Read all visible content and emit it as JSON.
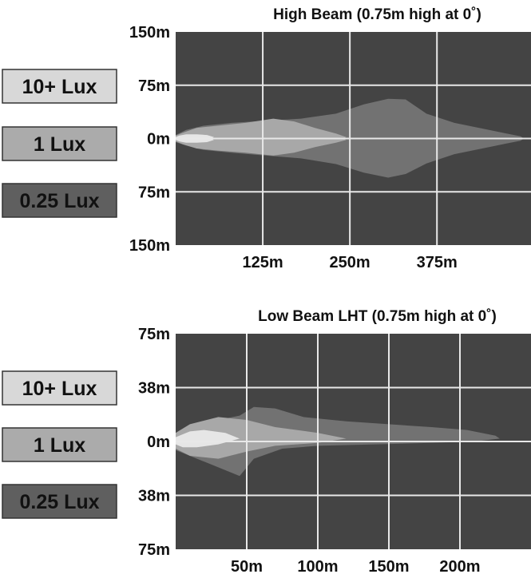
{
  "chart_data": [
    {
      "type": "area",
      "title": "High Beam (0.75m high at 0˚)",
      "xlabel": "",
      "ylabel": "",
      "x_ticks": [
        "125m",
        "250m",
        "375m"
      ],
      "x_tick_values": [
        125,
        250,
        375
      ],
      "y_ticks": [
        "150m",
        "75m",
        "0m",
        "75m",
        "150m"
      ],
      "xlim": [
        0,
        510
      ],
      "ylim": [
        -150,
        150
      ],
      "grid": true,
      "background_color": "#444444",
      "grid_color": "#e8e8e8",
      "legend_position": "left",
      "legend": [
        {
          "label": "10+ Lux",
          "color": "#d8d8d8"
        },
        {
          "label": "1 Lux",
          "color": "#ababab"
        },
        {
          "label": "0.25 Lux",
          "color": "#5f5f5f"
        }
      ],
      "series": [
        {
          "name": "0.25 Lux",
          "color": "#727272",
          "x": [
            0,
            15,
            40,
            80,
            130,
            180,
            230,
            270,
            305,
            330,
            360,
            400,
            440,
            470,
            495,
            500
          ],
          "upper": [
            5,
            12,
            18,
            22,
            25,
            28,
            35,
            48,
            56,
            55,
            35,
            22,
            14,
            8,
            3,
            0
          ],
          "lower": [
            -5,
            -10,
            -16,
            -20,
            -24,
            -28,
            -36,
            -48,
            -55,
            -50,
            -35,
            -22,
            -14,
            -8,
            -3,
            0
          ]
        },
        {
          "name": "1 Lux",
          "color": "#a8a8a8",
          "x": [
            0,
            10,
            30,
            60,
            100,
            140,
            170,
            200,
            230,
            245,
            240
          ],
          "upper": [
            4,
            8,
            15,
            18,
            22,
            28,
            24,
            15,
            7,
            2,
            0
          ],
          "lower": [
            -4,
            -8,
            -14,
            -17,
            -20,
            -24,
            -20,
            -12,
            -6,
            -2,
            0
          ]
        },
        {
          "name": "10+ Lux",
          "color": "#e6e6e6",
          "x": [
            0,
            5,
            15,
            30,
            45,
            55,
            50
          ],
          "upper": [
            2,
            4,
            6,
            6,
            5,
            2,
            0
          ],
          "lower": [
            -2,
            -4,
            -6,
            -6,
            -5,
            -2,
            0
          ]
        }
      ]
    },
    {
      "type": "area",
      "title": "Low Beam LHT (0.75m high at 0˚)",
      "xlabel": "",
      "ylabel": "",
      "x_ticks": [
        "50m",
        "100m",
        "150m",
        "200m"
      ],
      "x_tick_values": [
        50,
        100,
        150,
        200
      ],
      "y_ticks": [
        "75m",
        "38m",
        "0m",
        "38m",
        "75m"
      ],
      "xlim": [
        0,
        250
      ],
      "ylim": [
        -75,
        75
      ],
      "grid": true,
      "background_color": "#444444",
      "grid_color": "#e8e8e8",
      "legend_position": "left",
      "legend": [
        {
          "label": "10+ Lux",
          "color": "#d8d8d8"
        },
        {
          "label": "1 Lux",
          "color": "#ababab"
        },
        {
          "label": "0.25 Lux",
          "color": "#5f5f5f"
        }
      ],
      "series": [
        {
          "name": "0.25 Lux",
          "color": "#727272",
          "x": [
            0,
            10,
            25,
            45,
            55,
            70,
            90,
            120,
            150,
            180,
            205,
            225,
            228,
            210,
            180,
            140,
            100,
            75,
            55,
            45,
            30,
            15,
            0
          ],
          "upper": [
            4,
            10,
            14,
            18,
            24,
            23,
            17,
            14,
            12,
            10,
            8,
            4,
            2,
            0,
            -1,
            -2,
            -3,
            -5,
            -12,
            -24,
            -18,
            -12,
            -6
          ],
          "lower": null
        },
        {
          "name": "1 Lux",
          "color": "#a8a8a8",
          "x": [
            0,
            10,
            30,
            50,
            70,
            100,
            120,
            100,
            70,
            50,
            30,
            10,
            0
          ],
          "upper": [
            6,
            12,
            17,
            15,
            10,
            6,
            2,
            -1,
            -3,
            -7,
            -12,
            -10,
            -5
          ],
          "lower": null
        },
        {
          "name": "10+ Lux",
          "color": "#e6e6e6",
          "x": [
            0,
            10,
            20,
            35,
            45,
            30,
            15,
            5,
            0
          ],
          "upper": [
            3,
            7,
            8,
            6,
            2,
            -2,
            -4,
            -4,
            -2
          ],
          "lower": null
        }
      ]
    }
  ]
}
